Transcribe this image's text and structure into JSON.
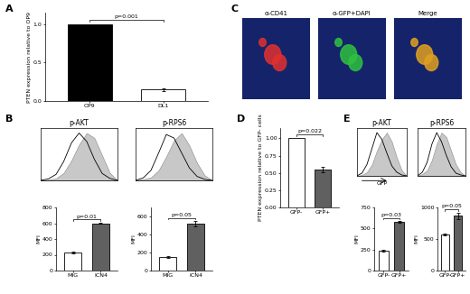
{
  "chart_data": [
    {
      "panel": "A",
      "type": "bar",
      "categories": [
        "OP9",
        "DL1"
      ],
      "values": [
        1.0,
        0.15
      ],
      "errors": [
        null,
        0.02
      ],
      "colors": [
        "#000000",
        "#ffffff"
      ],
      "ylabel": "PTEN expression relative to OP9",
      "ylim": [
        0,
        1.15
      ],
      "yticks": [
        {
          "value": 0,
          "label": "0.0"
        },
        {
          "value": 0.5,
          "label": "0.5"
        },
        {
          "value": 1.0,
          "label": "1.0"
        }
      ],
      "annotations": [
        {
          "text": "p=0.001"
        }
      ]
    },
    {
      "panel": "C",
      "type": "image",
      "title": "α-CD41",
      "color": "#e03030"
    },
    {
      "type": "image",
      "title": "α-GFP+DAPI",
      "color": "#30c040"
    },
    {
      "type": "image",
      "title": "Merge",
      "color": "#e0a020"
    },
    {
      "panel": "B",
      "type": "histogram_overlay",
      "title": "p-AKT",
      "x": [
        0,
        10,
        20,
        30,
        40,
        50,
        60,
        70,
        80,
        90,
        100
      ],
      "series": [
        {
          "type": "area",
          "color": "#c8c8c8",
          "values": [
            0,
            1,
            4,
            15,
            40,
            72,
            95,
            85,
            50,
            15,
            0
          ]
        },
        {
          "type": "line",
          "color": "#000000",
          "values": [
            0,
            3,
            12,
            38,
            75,
            95,
            78,
            42,
            14,
            4,
            0
          ]
        }
      ],
      "xlim": [
        0,
        100
      ],
      "ylim": [
        0,
        105
      ],
      "tick_labels": false
    },
    {
      "type": "histogram_overlay",
      "title": "p-RPS6",
      "x": [
        0,
        10,
        20,
        30,
        40,
        50,
        60,
        70,
        80,
        90,
        100
      ],
      "series": [
        {
          "type": "area",
          "color": "#c8c8c8",
          "values": [
            0,
            2,
            6,
            20,
            48,
            80,
            95,
            70,
            35,
            10,
            0
          ]
        },
        {
          "type": "line",
          "color": "#000000",
          "values": [
            0,
            5,
            20,
            55,
            92,
            85,
            55,
            25,
            8,
            2,
            0
          ]
        }
      ],
      "xlim": [
        0,
        100
      ],
      "ylim": [
        0,
        105
      ],
      "tick_labels": false
    },
    {
      "type": "bar",
      "categories": [
        "MIG",
        "ICN4"
      ],
      "values": [
        230,
        600
      ],
      "errors": [
        15,
        10
      ],
      "colors": [
        "#ffffff",
        "#606060"
      ],
      "ylabel": "MFI",
      "ylim": [
        0,
        800
      ],
      "yticks": [
        0,
        200,
        400,
        600,
        800
      ],
      "annotations": [
        {
          "text": "p=0.01"
        }
      ]
    },
    {
      "type": "bar",
      "categories": [
        "MIG",
        "ICN4"
      ],
      "values": [
        150,
        520
      ],
      "errors": [
        10,
        30
      ],
      "colors": [
        "#ffffff",
        "#606060"
      ],
      "ylabel": "MFI",
      "ylim": [
        0,
        700
      ],
      "yticks": [
        0,
        200,
        400,
        600
      ],
      "annotations": [
        {
          "text": "p=0.05"
        }
      ]
    },
    {
      "panel": "D",
      "type": "bar",
      "categories": [
        "GFP-",
        "GFP+"
      ],
      "values": [
        1.0,
        0.55
      ],
      "errors": [
        null,
        0.04
      ],
      "colors": [
        "#ffffff",
        "#606060"
      ],
      "ylabel": "PTEN expression relative to GFP- cells",
      "ylim": [
        0,
        1.15
      ],
      "yticks": [
        {
          "value": 0,
          "label": "0.00"
        },
        {
          "value": 0.25,
          "label": "0.25"
        },
        {
          "value": 0.5,
          "label": "0.50"
        },
        {
          "value": 0.75,
          "label": "0.75"
        },
        {
          "value": 1.0,
          "label": "1.00"
        }
      ],
      "annotations": [
        {
          "text": "p=0.022"
        }
      ]
    },
    {
      "panel": "E",
      "type": "histogram_overlay",
      "title": "p-AKT",
      "xlabel": "GFP",
      "x": [
        0,
        10,
        20,
        30,
        40,
        50,
        60,
        70,
        80,
        90,
        100
      ],
      "series": [
        {
          "type": "area",
          "color": "#c8c8c8",
          "values": [
            0,
            2,
            8,
            25,
            55,
            80,
            95,
            75,
            40,
            12,
            0
          ]
        },
        {
          "type": "line",
          "color": "#000000",
          "values": [
            0,
            6,
            25,
            60,
            95,
            80,
            50,
            22,
            8,
            2,
            0
          ]
        }
      ],
      "xlim": [
        0,
        100
      ],
      "ylim": [
        0,
        105
      ],
      "tick_labels": false
    },
    {
      "type": "histogram_overlay",
      "title": "p-RPS6",
      "x": [
        0,
        10,
        20,
        30,
        40,
        50,
        60,
        70,
        80,
        90,
        100
      ],
      "series": [
        {
          "type": "area",
          "color": "#c8c8c8",
          "values": [
            0,
            4,
            12,
            35,
            70,
            95,
            85,
            55,
            25,
            8,
            0
          ]
        },
        {
          "type": "line",
          "color": "#000000",
          "values": [
            0,
            8,
            30,
            70,
            95,
            75,
            45,
            20,
            6,
            2,
            0
          ]
        }
      ],
      "xlim": [
        0,
        100
      ],
      "ylim": [
        0,
        105
      ],
      "tick_labels": false
    },
    {
      "type": "bar",
      "categories": [
        "GFP-",
        "GFP+"
      ],
      "values": [
        240,
        580
      ],
      "errors": [
        10,
        10
      ],
      "colors": [
        "#ffffff",
        "#606060"
      ],
      "ylabel": "MFI",
      "ylim": [
        0,
        750
      ],
      "yticks": [
        0,
        250,
        500,
        750
      ],
      "annotations": [
        {
          "text": "p=0.03"
        }
      ]
    },
    {
      "type": "bar",
      "categories": [
        "GFP-",
        "GFP+"
      ],
      "values": [
        570,
        870
      ],
      "errors": [
        10,
        50
      ],
      "colors": [
        "#ffffff",
        "#606060"
      ],
      "ylabel": "MFI",
      "ylim": [
        0,
        1000
      ],
      "yticks": [
        0,
        500,
        1000
      ],
      "annotations": [
        {
          "text": "p=0.05"
        }
      ]
    }
  ]
}
